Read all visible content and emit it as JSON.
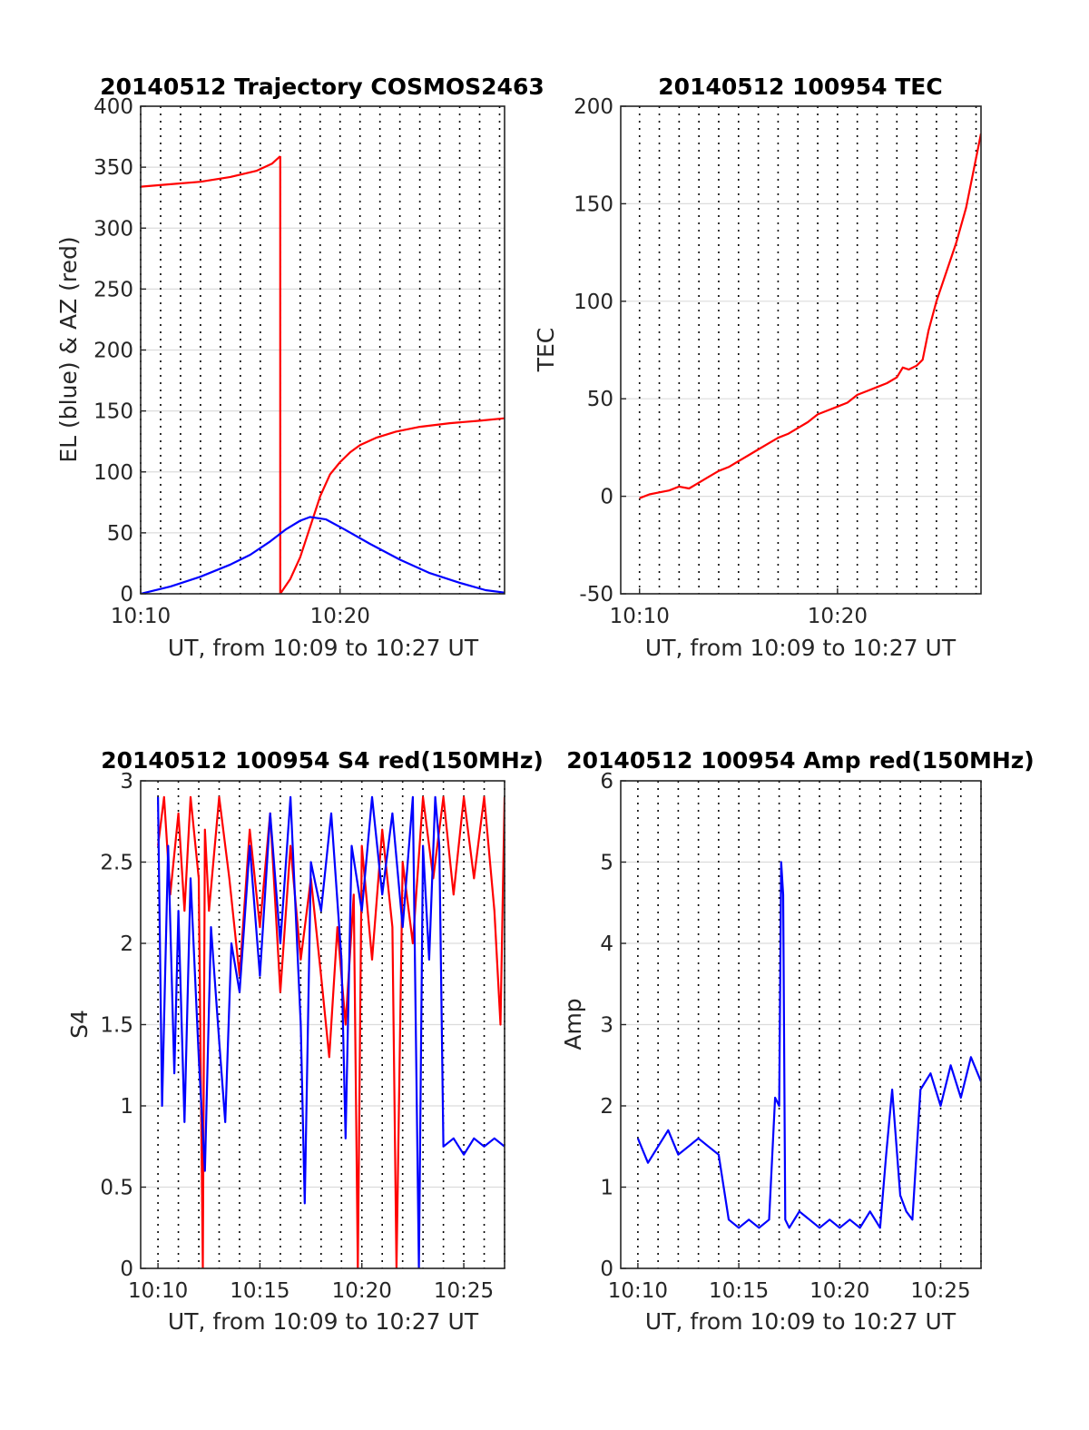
{
  "figure": {
    "background": "#ffffff"
  },
  "colors": {
    "red": "#ff0000",
    "blue": "#0000ff",
    "grid": "#dcdcdc",
    "axis": "#262626"
  },
  "chart_data": [
    {
      "id": "trajectory",
      "type": "line",
      "title": "20140512 Trajectory COSMOS2463",
      "xlabel": "UT, from 10:09 to 10:27 UT",
      "ylabel": "EL (blue) & AZ (red)",
      "xlim_min": [
        10.0,
        28.25
      ],
      "ylim": [
        0,
        400
      ],
      "yticks": [
        0,
        50,
        100,
        150,
        200,
        250,
        300,
        350,
        400
      ],
      "xticks": [
        {
          "min": 10,
          "label": "10:10"
        },
        {
          "min": 20,
          "label": "10:20"
        }
      ],
      "vgrid_dotted_min": [
        10,
        11,
        12,
        13,
        14,
        15,
        16,
        17,
        18,
        19,
        20,
        21,
        22,
        23,
        24,
        25,
        26,
        27,
        28
      ],
      "hgrid": true,
      "series": [
        {
          "color": "#ff0000",
          "segments": [
            {
              "x": [
                10.0,
                11.5,
                13.0,
                14.5,
                15.8,
                16.6,
                17.0
              ],
              "y": [
                334,
                336,
                338,
                342,
                347,
                353,
                359
              ]
            },
            {
              "x": [
                17.0,
                17.0,
                17.5,
                18.0,
                18.5,
                19.0,
                19.5,
                20.0,
                20.5,
                21.0,
                21.8,
                22.8,
                24.0,
                25.5,
                27.0,
                28.25
              ],
              "y": [
                359,
                0,
                12,
                30,
                55,
                80,
                98,
                108,
                116,
                122,
                128,
                133,
                137,
                140,
                142,
                144
              ]
            }
          ]
        },
        {
          "color": "#0000ff",
          "segments": [
            {
              "x": [
                10.0,
                11.5,
                13.0,
                14.5,
                15.5,
                16.5,
                17.3,
                18.0,
                18.5,
                19.3,
                20.2,
                21.5,
                23.0,
                24.5,
                26.0,
                27.3,
                28.25
              ],
              "y": [
                0,
                6,
                14,
                24,
                32,
                43,
                53,
                60,
                63,
                61,
                53,
                41,
                28,
                17,
                9,
                3,
                1
              ]
            }
          ]
        }
      ]
    },
    {
      "id": "tec",
      "type": "line",
      "title": "20140512 100954 TEC",
      "xlabel": "UT, from 10:09 to 10:27 UT",
      "ylabel": "TEC",
      "xlim_min": [
        9.05,
        27.25
      ],
      "ylim": [
        -50,
        200
      ],
      "yticks": [
        -50,
        0,
        50,
        100,
        150,
        200
      ],
      "xticks": [
        {
          "min": 10,
          "label": "10:10"
        },
        {
          "min": 20,
          "label": "10:20"
        }
      ],
      "vgrid_dotted_min": [
        10,
        11,
        12,
        13,
        14,
        15,
        16,
        17,
        18,
        19,
        20,
        21,
        22,
        23,
        24,
        25,
        26,
        27
      ],
      "hgrid": true,
      "series": [
        {
          "color": "#ff0000",
          "segments": [
            {
              "x": [
                10.0,
                10.5,
                11.0,
                11.5,
                12.0,
                12.5,
                13.0,
                13.5,
                14.0,
                14.5,
                15.0,
                15.5,
                16.0,
                16.5,
                17.0,
                17.5,
                18.0,
                18.5,
                19.0,
                19.5,
                20.0,
                20.5,
                21.0,
                21.5,
                22.0,
                22.5,
                23.0,
                23.3,
                23.6,
                24.0,
                24.3,
                24.6,
                25.0,
                25.5,
                26.0,
                26.5,
                27.25
              ],
              "y": [
                -1,
                1,
                2,
                3,
                5,
                4,
                7,
                10,
                13,
                15,
                18,
                21,
                24,
                27,
                30,
                32,
                35,
                38,
                42,
                44,
                46,
                48,
                52,
                54,
                56,
                58,
                61,
                66,
                65,
                67,
                70,
                85,
                100,
                115,
                130,
                148,
                186
              ]
            }
          ]
        }
      ]
    },
    {
      "id": "s4",
      "type": "line",
      "title": "20140512 100954 S4 red(150MHz)",
      "xlabel": "UT, from 10:09 to 10:27 UT",
      "ylabel": "S4",
      "xlim_min": [
        9.15,
        27.0
      ],
      "ylim": [
        0,
        3
      ],
      "yticks": [
        0,
        0.5,
        1,
        1.5,
        2,
        2.5,
        3
      ],
      "ytick_labels": [
        "0",
        "0.5",
        "1",
        "1.5",
        "2",
        "2.5",
        "3"
      ],
      "xticks": [
        {
          "min": 10,
          "label": "10:10"
        },
        {
          "min": 15,
          "label": "10:15"
        },
        {
          "min": 20,
          "label": "10:20"
        },
        {
          "min": 25,
          "label": "10:25"
        }
      ],
      "vgrid_dotted_min": [
        10,
        11,
        12,
        13,
        14,
        15,
        16,
        17,
        18,
        19,
        20,
        21,
        22,
        23,
        24,
        25,
        26,
        27
      ],
      "hgrid": true,
      "series": [
        {
          "color": "#ff0000",
          "segments": [
            {
              "x": [
                10.0,
                10.3,
                10.6,
                11.0,
                11.3,
                11.6,
                12.0,
                12.2,
                12.3,
                12.5,
                13.0,
                13.5,
                14.0,
                14.5,
                15.0,
                15.5,
                16.0,
                16.5,
                17.0,
                17.5,
                18.0,
                18.4,
                18.8,
                19.2,
                19.6,
                19.8,
                20.0,
                20.5,
                21.0,
                21.5,
                21.7,
                22.0,
                22.5,
                23.0,
                23.5,
                24.0,
                24.5,
                25.0,
                25.5,
                26.0,
                26.5,
                26.8,
                27.0
              ],
              "y": [
                2.6,
                2.9,
                2.3,
                2.8,
                2.2,
                2.9,
                2.4,
                0.0,
                2.7,
                2.2,
                2.9,
                2.4,
                1.8,
                2.7,
                2.1,
                2.8,
                1.7,
                2.6,
                1.9,
                2.4,
                1.8,
                1.3,
                2.1,
                1.5,
                2.3,
                0.0,
                2.6,
                1.9,
                2.7,
                2.1,
                0.0,
                2.5,
                2.0,
                2.9,
                2.4,
                2.9,
                2.3,
                2.9,
                2.4,
                2.9,
                2.2,
                1.5,
                2.9
              ]
            }
          ]
        },
        {
          "color": "#0000ff",
          "segments": [
            {
              "x": [
                10.0,
                10.2,
                10.5,
                10.8,
                11.0,
                11.3,
                11.6,
                12.0,
                12.3,
                12.6,
                13.0,
                13.3,
                13.6,
                14.0,
                14.5,
                15.0,
                15.5,
                16.0,
                16.5,
                17.0,
                17.2,
                17.5,
                18.0,
                18.5,
                19.0,
                19.2,
                19.5,
                20.0,
                20.5,
                21.0,
                21.5,
                22.0,
                22.5,
                22.8,
                23.0,
                23.3,
                23.6,
                23.8,
                24.0,
                24.5,
                25.0,
                25.5,
                26.0,
                26.5,
                27.0
              ],
              "y": [
                2.9,
                1.0,
                2.6,
                1.2,
                2.2,
                0.9,
                2.4,
                1.3,
                0.6,
                2.1,
                1.4,
                0.9,
                2.0,
                1.7,
                2.6,
                1.8,
                2.8,
                2.0,
                2.9,
                1.5,
                0.4,
                2.5,
                2.2,
                2.8,
                1.9,
                0.8,
                2.6,
                2.2,
                2.9,
                2.3,
                2.8,
                2.1,
                2.9,
                0.0,
                2.6,
                1.9,
                2.9,
                2.6,
                0.75,
                0.8,
                0.7,
                0.8,
                0.75,
                0.8,
                0.75
              ]
            }
          ]
        }
      ]
    },
    {
      "id": "amp",
      "type": "line",
      "title": "20140512 100954 Amp red(150MHz)",
      "xlabel": "UT, from 10:09 to 10:27 UT",
      "ylabel": "Amp",
      "xlim_min": [
        9.15,
        27.0
      ],
      "ylim": [
        0,
        6
      ],
      "yticks": [
        0,
        1,
        2,
        3,
        4,
        5,
        6
      ],
      "xticks": [
        {
          "min": 10,
          "label": "10:10"
        },
        {
          "min": 15,
          "label": "10:15"
        },
        {
          "min": 20,
          "label": "10:20"
        },
        {
          "min": 25,
          "label": "10:25"
        }
      ],
      "vgrid_dotted_min": [
        10,
        11,
        12,
        13,
        14,
        15,
        16,
        17,
        18,
        19,
        20,
        21,
        22,
        23,
        24,
        25,
        26,
        27
      ],
      "hgrid": true,
      "series": [
        {
          "color": "#0000ff",
          "segments": [
            {
              "x": [
                10.0,
                10.5,
                11.0,
                11.5,
                12.0,
                12.5,
                13.0,
                13.5,
                14.0,
                14.5,
                15.0,
                15.5,
                16.0,
                16.5,
                16.8,
                17.0,
                17.1,
                17.2,
                17.3,
                17.5,
                18.0,
                18.5,
                19.0,
                19.5,
                20.0,
                20.5,
                21.0,
                21.5,
                22.0,
                22.3,
                22.6,
                23.0,
                23.3,
                23.6,
                24.0,
                24.5,
                25.0,
                25.5,
                26.0,
                26.5,
                27.0
              ],
              "y": [
                1.6,
                1.3,
                1.5,
                1.7,
                1.4,
                1.5,
                1.6,
                1.5,
                1.4,
                0.6,
                0.5,
                0.6,
                0.5,
                0.6,
                2.1,
                2.0,
                5.0,
                4.6,
                0.6,
                0.5,
                0.7,
                0.6,
                0.5,
                0.6,
                0.5,
                0.6,
                0.5,
                0.7,
                0.5,
                1.4,
                2.2,
                0.9,
                0.7,
                0.6,
                2.2,
                2.4,
                2.0,
                2.5,
                2.1,
                2.6,
                2.3
              ]
            }
          ]
        }
      ]
    }
  ]
}
